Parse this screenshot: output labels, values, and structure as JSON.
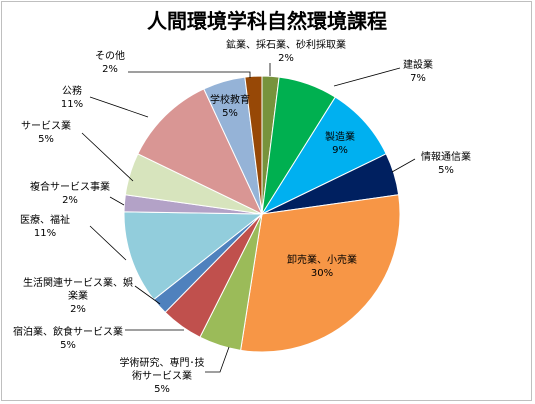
{
  "chart_data": {
    "type": "pie",
    "title": "人間環境学科自然環境課程",
    "unit": "%",
    "slices": [
      {
        "name": "鉱業、採石業、砂利採取業",
        "value": 2,
        "label": "2%",
        "color": "#77933c"
      },
      {
        "name": "建設業",
        "value": 7,
        "label": "7%",
        "color": "#00b050"
      },
      {
        "name": "製造業",
        "value": 9,
        "label": "9%",
        "color": "#00b0f0"
      },
      {
        "name": "情報通信業",
        "value": 5,
        "label": "5%",
        "color": "#002060"
      },
      {
        "name": "卸売業、小売業",
        "value": 30,
        "label": "30%",
        "color": "#f79646"
      },
      {
        "name": "学術研究、専門･技術サービス業",
        "value": 5,
        "label": "5%",
        "color": "#9bbb59"
      },
      {
        "name": "宿泊業、飲食サービス業",
        "value": 5,
        "label": "5%",
        "color": "#c0504d"
      },
      {
        "name": "生活関連サービス業、娯楽業",
        "value": 2,
        "label": "2%",
        "color": "#4f81bd"
      },
      {
        "name": "医療、福祉",
        "value": 11,
        "label": "11%",
        "color": "#92cddc"
      },
      {
        "name": "複合サービス事業",
        "value": 2,
        "label": "2%",
        "color": "#b3a2c7"
      },
      {
        "name": "サービス業",
        "value": 5,
        "label": "5%",
        "color": "#d7e4bd"
      },
      {
        "name": "公務",
        "value": 11,
        "label": "11%",
        "color": "#d99694"
      },
      {
        "name": "学校教育",
        "value": 5,
        "label": "5%",
        "color": "#95b3d7"
      },
      {
        "name": "その他",
        "value": 2,
        "label": "2%",
        "color": "#974806"
      }
    ]
  }
}
